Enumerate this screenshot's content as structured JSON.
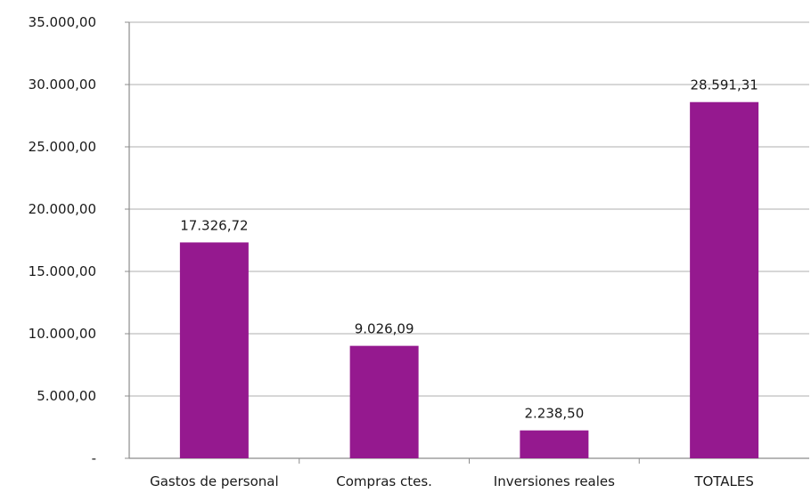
{
  "chart_data": {
    "type": "bar",
    "categories": [
      "Gastos de personal",
      "Compras ctes.",
      "Inversiones reales",
      "TOTALES"
    ],
    "values": [
      17326.72,
      9026.09,
      2238.5,
      28591.31
    ],
    "data_labels": [
      "17.326,72",
      "9.026,09",
      "2.238,50",
      "28.591,31"
    ],
    "y_ticks": [
      0,
      5000,
      10000,
      15000,
      20000,
      25000,
      30000,
      35000
    ],
    "y_tick_labels": [
      "-",
      "5.000,00",
      "10.000,00",
      "15.000,00",
      "20.000,00",
      "25.000,00",
      "30.000,00",
      "35.000,00"
    ],
    "ylim": [
      0,
      35000
    ],
    "grid": true,
    "legend": "none",
    "bar_color": "#95198f",
    "grid_color": "#bfbfbf",
    "title": "",
    "xlabel": "",
    "ylabel": ""
  }
}
